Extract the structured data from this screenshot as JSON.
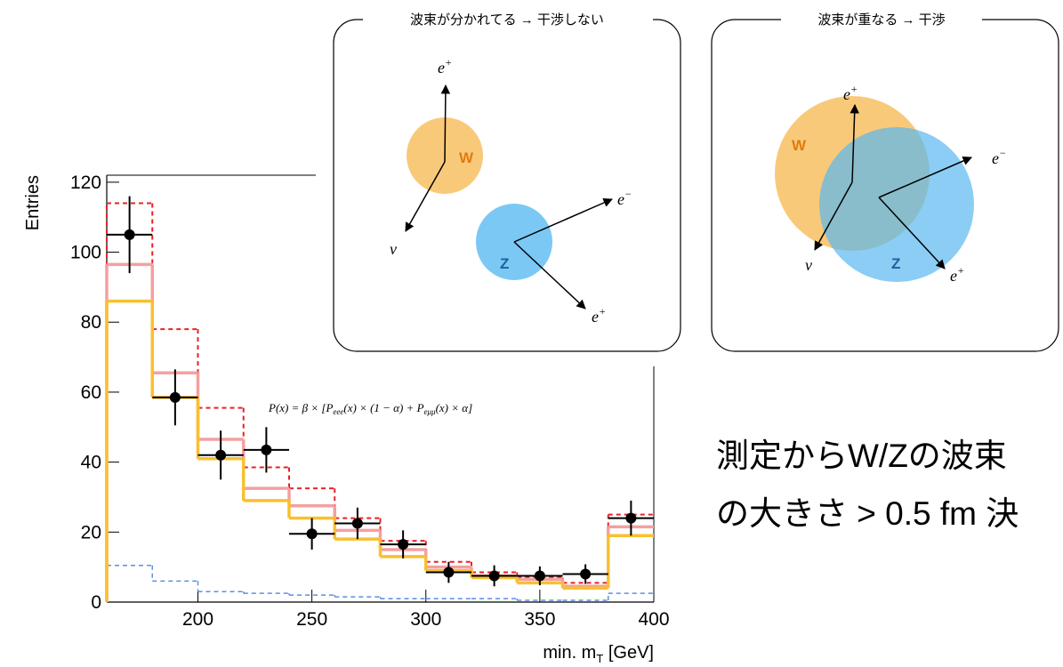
{
  "chart_data": {
    "type": "histogram",
    "ylabel": "Entries",
    "xlabel": [
      "min. m",
      "T",
      " [GeV]"
    ],
    "annotation": [
      "P(x) = β × [P",
      "eee",
      "(x) × (1 − α) + P",
      "eμμ",
      "(x) × α]"
    ],
    "bins": [
      160,
      180,
      200,
      220,
      240,
      260,
      280,
      300,
      320,
      340,
      360,
      380,
      400
    ],
    "xlim": [
      160,
      400
    ],
    "xticks": [
      200,
      250,
      300,
      350,
      400
    ],
    "ylim": [
      0,
      122
    ],
    "yticks": [
      0,
      20,
      40,
      60,
      80,
      100,
      120
    ],
    "series": [
      {
        "color": "#5b8fe0",
        "dash": true,
        "width": 1.5,
        "values": [
          10.5,
          6,
          3,
          2.5,
          2,
          1.5,
          1,
          1,
          1,
          0.5,
          0.5,
          2.5
        ]
      },
      {
        "color": "#e8202a",
        "dash": true,
        "width": 2,
        "values": [
          114,
          78,
          55.5,
          38.5,
          32.5,
          24,
          17.5,
          11.5,
          8.5,
          7,
          5.5,
          25
        ]
      },
      {
        "color": "#f4a0a0",
        "dash": false,
        "width": 3.5,
        "values": [
          96.5,
          65.5,
          46.5,
          32.5,
          27.5,
          20.5,
          15,
          10,
          7.5,
          6.5,
          4.5,
          21.5
        ]
      },
      {
        "color": "#f9c02e",
        "dash": false,
        "width": 3.5,
        "values": [
          86,
          58.5,
          41,
          29,
          24,
          18,
          13,
          9,
          7,
          5.5,
          4,
          19
        ]
      }
    ],
    "points": {
      "color": "#000000",
      "values": [
        105,
        58.5,
        42,
        43.5,
        19.5,
        22.5,
        16.5,
        8.5,
        7.5,
        7.5,
        8,
        24
      ],
      "errors": [
        11,
        8,
        7,
        6.5,
        4.5,
        4.5,
        4,
        3,
        3,
        2.7,
        2.8,
        5
      ]
    }
  },
  "diagrams": [
    {
      "title": "波束が分かれてる → 干渉しない",
      "w": "W",
      "z": "Z",
      "labels": [
        {
          "base": "e",
          "sup": "+"
        },
        {
          "base": "ν",
          "sup": ""
        },
        {
          "base": "e",
          "sup": "−"
        },
        {
          "base": "e",
          "sup": "+"
        }
      ]
    },
    {
      "title": "波束が重なる → 干渉",
      "w": "W",
      "z": "Z",
      "labels": [
        {
          "base": "e",
          "sup": "+"
        },
        {
          "base": "ν",
          "sup": ""
        },
        {
          "base": "e",
          "sup": "−"
        },
        {
          "base": "e",
          "sup": "+"
        }
      ]
    }
  ],
  "text": [
    "測定からW/Zの波束",
    "の大きさ > 0.5 fm 決"
  ]
}
